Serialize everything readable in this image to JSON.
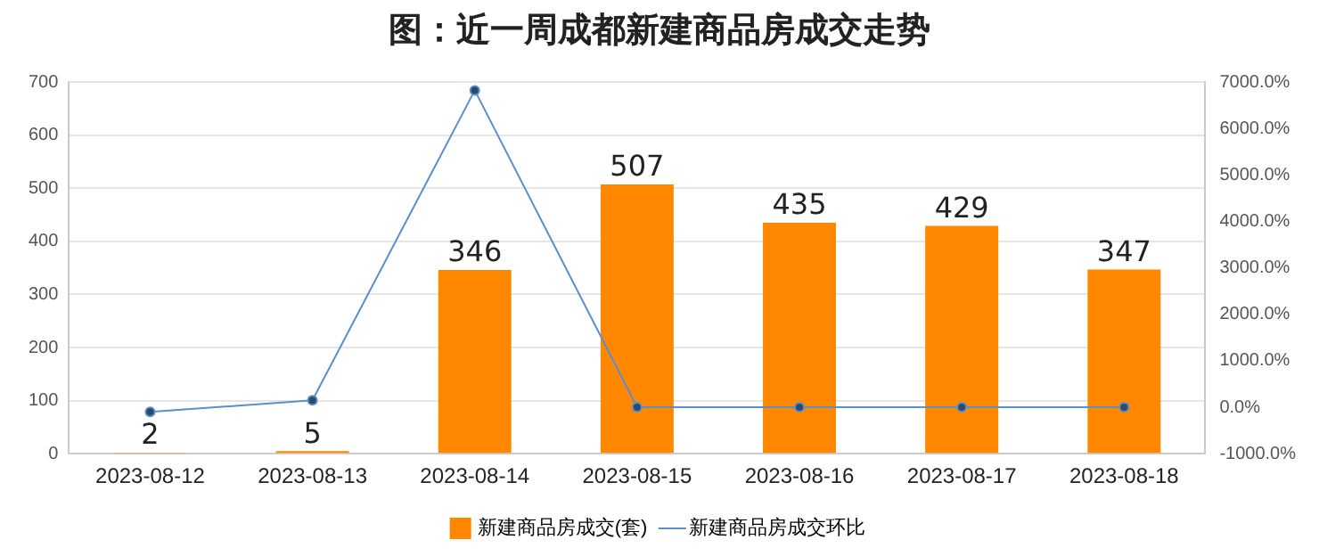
{
  "chart_data": {
    "type": "bar",
    "title": "图：近一周成都新建商品房成交走势",
    "categories": [
      "2023-08-12",
      "2023-08-13",
      "2023-08-14",
      "2023-08-15",
      "2023-08-16",
      "2023-08-17",
      "2023-08-18"
    ],
    "series": [
      {
        "name": "新建商品房成交(套)",
        "color": "#ff8800",
        "values": [
          2,
          5,
          346,
          507,
          435,
          429,
          347
        ],
        "value_labels": [
          "2",
          "5",
          "346",
          "507",
          "435",
          "429",
          "347"
        ]
      },
      {
        "name": "新建商品房成交环比",
        "type": "line",
        "axis": "y2",
        "color": "#5b8fc9",
        "marker": "circle",
        "values": [
          -100,
          150,
          6820,
          0,
          0,
          0,
          0
        ]
      }
    ],
    "ylim": [
      0,
      700
    ],
    "yticks": [
      0,
      100,
      200,
      300,
      400,
      500,
      600,
      700
    ],
    "y2lim": [
      -1000,
      7000
    ],
    "y2ticks": [
      {
        "value": -1000,
        "label": "-1000.0%"
      },
      {
        "value": 0,
        "label": "0.0%"
      },
      {
        "value": 1000,
        "label": "1000.0%"
      },
      {
        "value": 2000,
        "label": "2000.0%"
      },
      {
        "value": 3000,
        "label": "3000.0%"
      },
      {
        "value": 4000,
        "label": "4000.0%"
      },
      {
        "value": 5000,
        "label": "5000.0%"
      },
      {
        "value": 6000,
        "label": "6000.0%"
      },
      {
        "value": 7000,
        "label": "7000.0%"
      }
    ],
    "grid": "y",
    "legend": "bottom"
  }
}
